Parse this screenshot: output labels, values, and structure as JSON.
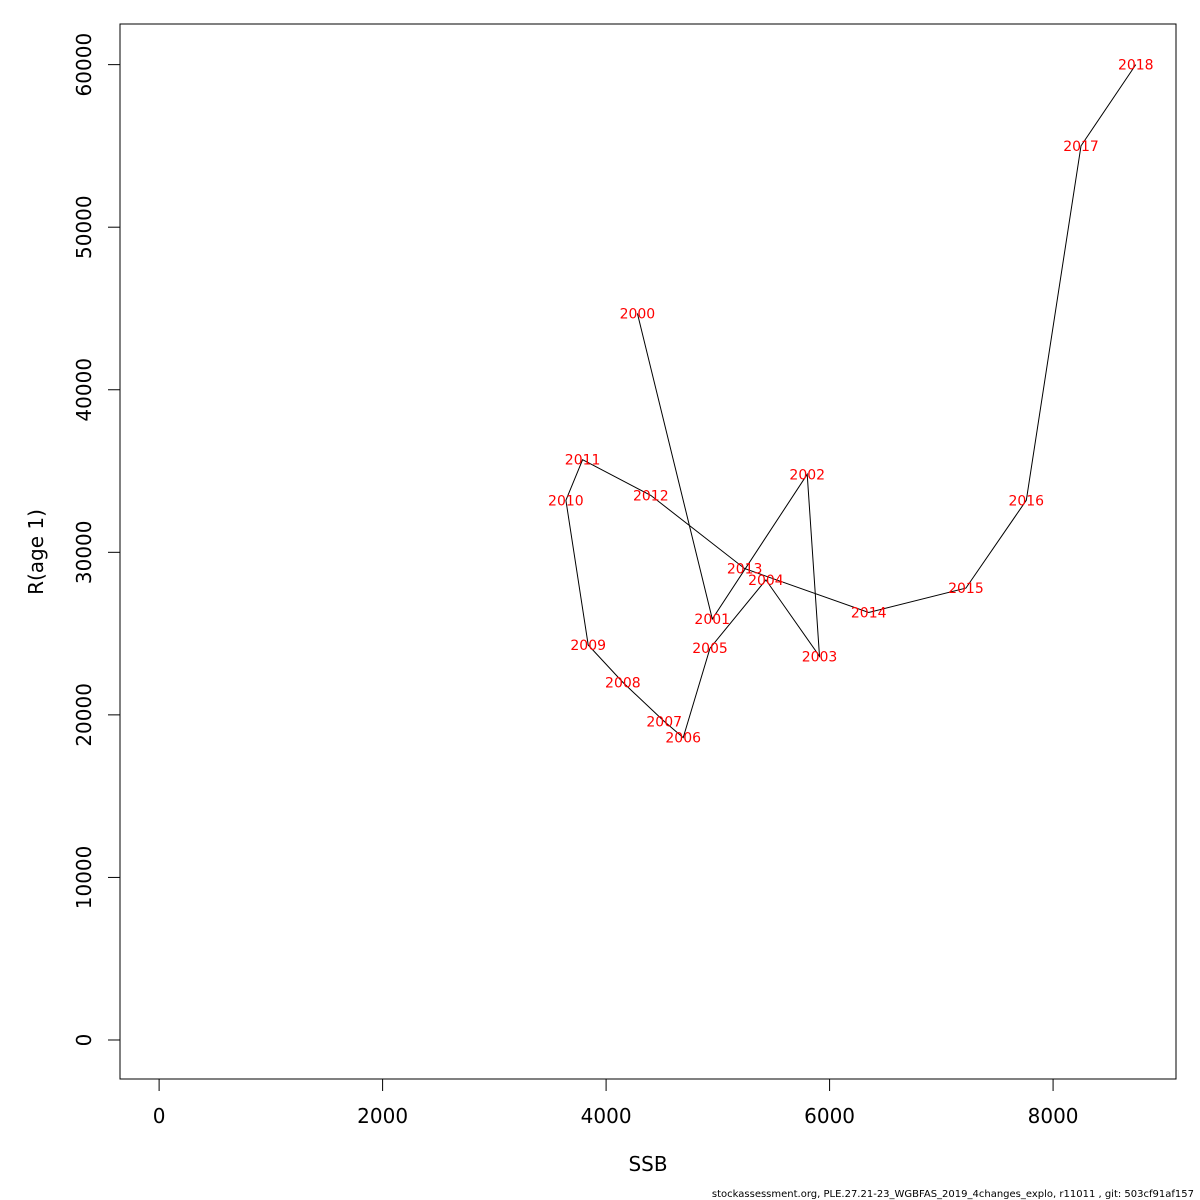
{
  "chart_data": {
    "type": "line",
    "xlabel": "SSB",
    "ylabel": "R(age 1)",
    "xlim": [
      -350,
      9100
    ],
    "ylim": [
      -2400,
      62500
    ],
    "xticks": [
      0,
      2000,
      4000,
      6000,
      8000
    ],
    "yticks": [
      0,
      10000,
      20000,
      30000,
      40000,
      50000,
      60000
    ],
    "line_color": "#000000",
    "label_color": "#ff0000",
    "points": [
      {
        "year": "2000",
        "x": 4280,
        "y": 44700
      },
      {
        "year": "2001",
        "x": 4950,
        "y": 25900
      },
      {
        "year": "2002",
        "x": 5800,
        "y": 34800
      },
      {
        "year": "2003",
        "x": 5910,
        "y": 23600
      },
      {
        "year": "2004",
        "x": 5430,
        "y": 28300
      },
      {
        "year": "2005",
        "x": 4930,
        "y": 24100
      },
      {
        "year": "2006",
        "x": 4690,
        "y": 18600
      },
      {
        "year": "2007",
        "x": 4520,
        "y": 19600
      },
      {
        "year": "2008",
        "x": 4150,
        "y": 22000
      },
      {
        "year": "2009",
        "x": 3840,
        "y": 24300
      },
      {
        "year": "2010",
        "x": 3640,
        "y": 33200
      },
      {
        "year": "2011",
        "x": 3790,
        "y": 35700
      },
      {
        "year": "2012",
        "x": 4400,
        "y": 33500
      },
      {
        "year": "2013",
        "x": 5240,
        "y": 29000
      },
      {
        "year": "2014",
        "x": 6350,
        "y": 26300
      },
      {
        "year": "2015",
        "x": 7220,
        "y": 27800
      },
      {
        "year": "2016",
        "x": 7760,
        "y": 33200
      },
      {
        "year": "2017",
        "x": 8250,
        "y": 55000
      },
      {
        "year": "2018",
        "x": 8740,
        "y": 60000
      }
    ]
  },
  "footer": "stockassessment.org, PLE.27.21-23_WGBFAS_2019_4changes_explo, r11011 , git: 503cf91af157"
}
